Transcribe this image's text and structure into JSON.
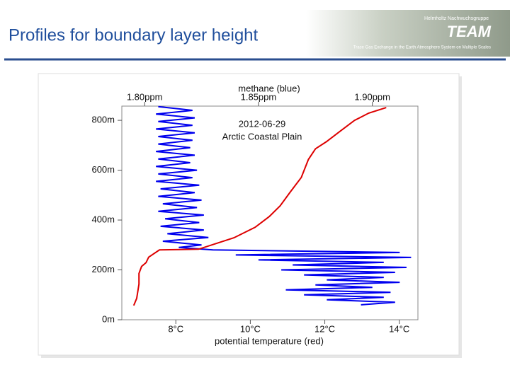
{
  "header": {
    "title": "Profiles for boundary layer height",
    "logo": {
      "org": "Helmholtz Nachwuchsgruppe",
      "name": "TEAM",
      "tagline": "Trace Gas Exchange in the Earth Atmosphere System on Multiple Scales"
    }
  },
  "chart_data": {
    "type": "line",
    "xlabel": "potential temperature (red)",
    "x2label": "methane (blue)",
    "annotations": [
      "2012-06-29",
      "Arctic Coastal Plain"
    ],
    "xlim": [
      6.55,
      14.5
    ],
    "xticks": [
      {
        "value": 8,
        "label": "8°C"
      },
      {
        "value": 10,
        "label": "10°C"
      },
      {
        "value": 12,
        "label": "12°C"
      },
      {
        "value": 14,
        "label": "14°C"
      }
    ],
    "x2lim": [
      1.79,
      1.92
    ],
    "x2ticks": [
      {
        "value": 1.8,
        "label": "1.80ppm"
      },
      {
        "value": 1.85,
        "label": "1.85ppm"
      },
      {
        "value": 1.9,
        "label": "1.90ppm"
      }
    ],
    "ylim": [
      0,
      857
    ],
    "yticks": [
      {
        "value": 0,
        "label": "0m"
      },
      {
        "value": 200,
        "label": "200m"
      },
      {
        "value": 400,
        "label": "400m"
      },
      {
        "value": 600,
        "label": "600m"
      },
      {
        "value": 800,
        "label": "800m"
      }
    ],
    "series": [
      {
        "color": "#0000ee",
        "axis": "x2",
        "x": [
          1.895,
          1.91,
          1.88,
          1.905,
          1.87,
          1.908,
          1.862,
          1.9,
          1.875,
          1.912,
          1.88,
          1.905,
          1.87,
          1.91,
          1.86,
          1.915,
          1.865,
          1.905,
          1.85,
          1.917,
          1.84,
          1.912,
          1.83,
          1.815,
          1.825,
          1.808,
          1.828,
          1.81,
          1.826,
          1.807,
          1.824,
          1.809,
          1.826,
          1.806,
          1.823,
          1.808,
          1.825,
          1.806,
          1.822,
          1.807,
          1.824,
          1.805,
          1.821,
          1.806,
          1.823,
          1.805,
          1.82,
          1.806,
          1.822,
          1.805,
          1.82,
          1.806,
          1.821,
          1.806,
          1.822,
          1.805,
          1.821,
          1.806,
          1.822,
          1.805,
          1.821,
          1.806
        ],
        "y": [
          60,
          70,
          80,
          90,
          100,
          110,
          120,
          130,
          140,
          150,
          160,
          170,
          180,
          190,
          200,
          210,
          220,
          230,
          240,
          250,
          260,
          270,
          280,
          290,
          300,
          315,
          330,
          345,
          360,
          375,
          390,
          405,
          420,
          435,
          450,
          465,
          480,
          495,
          510,
          525,
          540,
          555,
          570,
          585,
          600,
          615,
          630,
          645,
          660,
          675,
          690,
          705,
          720,
          735,
          750,
          765,
          780,
          795,
          810,
          825,
          840,
          855
        ]
      },
      {
        "color": "#dd0000",
        "axis": "x",
        "x": [
          6.87,
          6.95,
          7.01,
          7.01,
          7.08,
          7.2,
          7.27,
          7.56,
          8.61,
          9.56,
          10.13,
          10.51,
          10.8,
          11.08,
          11.37,
          11.56,
          11.75,
          12.04,
          12.42,
          12.8,
          13.18,
          13.65
        ],
        "y": [
          57,
          86,
          143,
          186,
          214,
          229,
          251,
          280,
          283,
          329,
          371,
          414,
          457,
          514,
          571,
          643,
          686,
          714,
          757,
          800,
          829,
          851
        ]
      }
    ]
  }
}
